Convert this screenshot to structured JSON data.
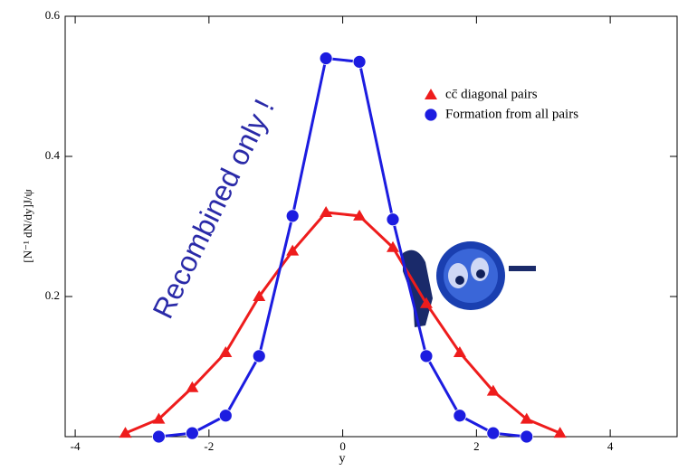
{
  "chart_data": {
    "type": "line",
    "xlabel": "y",
    "ylabel": "[N⁻¹ dN/dy]J/ψ",
    "annotation": "Recombined only !",
    "xlim": [
      -4.15,
      5
    ],
    "ylim": [
      0,
      0.6
    ],
    "xticks": [
      -4,
      -2,
      0,
      2,
      4
    ],
    "yticks": [
      0.2,
      0.4,
      0.6
    ],
    "series": [
      {
        "name": "cc̄ diagonal pairs",
        "color": "#ee1c1c",
        "marker": "triangle",
        "x": [
          -3.25,
          -2.75,
          -2.25,
          -1.75,
          -1.25,
          -0.75,
          -0.25,
          0.25,
          0.75,
          1.25,
          1.75,
          2.25,
          2.75,
          3.25
        ],
        "values": [
          0.005,
          0.025,
          0.07,
          0.12,
          0.2,
          0.265,
          0.32,
          0.315,
          0.27,
          0.19,
          0.12,
          0.065,
          0.025,
          0.005
        ]
      },
      {
        "name": "Formation from all pairs",
        "color": "#1c1ce0",
        "marker": "circle",
        "x": [
          -2.75,
          -2.25,
          -1.75,
          -1.25,
          -0.75,
          -0.25,
          0.25,
          0.75,
          1.25,
          1.75,
          2.25,
          2.75
        ],
        "values": [
          0.0,
          0.005,
          0.03,
          0.115,
          0.315,
          0.54,
          0.535,
          0.31,
          0.115,
          0.03,
          0.005,
          0.0
        ]
      }
    ]
  }
}
